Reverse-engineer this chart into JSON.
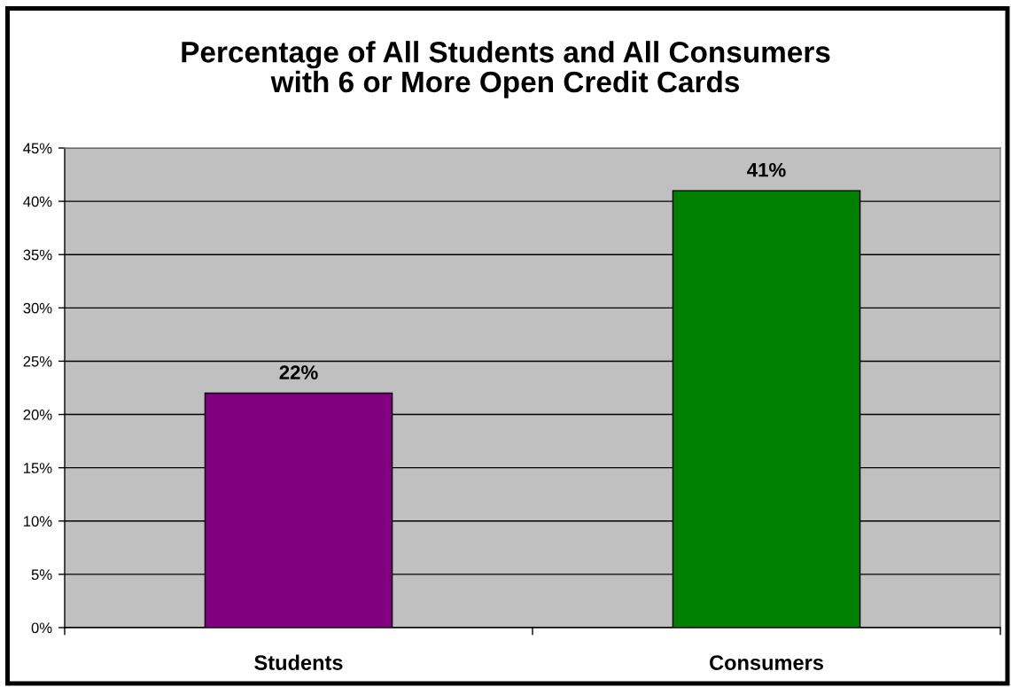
{
  "chart_data": {
    "type": "bar",
    "title": "Percentage of All Students and All Consumers\nwith 6 or More Open Credit Cards",
    "categories": [
      "Students",
      "Consumers"
    ],
    "values": [
      22,
      41
    ],
    "colors": [
      "#800080",
      "#008000"
    ],
    "value_labels": [
      "22%",
      "41%"
    ],
    "ylim": [
      0,
      45
    ],
    "yticks": [
      {
        "value": 0,
        "label": "0%"
      },
      {
        "value": 5,
        "label": "5%"
      },
      {
        "value": 10,
        "label": "10%"
      },
      {
        "value": 15,
        "label": "15%"
      },
      {
        "value": 20,
        "label": "20%"
      },
      {
        "value": 25,
        "label": "25%"
      },
      {
        "value": 30,
        "label": "30%"
      },
      {
        "value": 35,
        "label": "35%"
      },
      {
        "value": 40,
        "label": "40%"
      },
      {
        "value": 45,
        "label": "45%"
      }
    ],
    "grid": "y"
  }
}
